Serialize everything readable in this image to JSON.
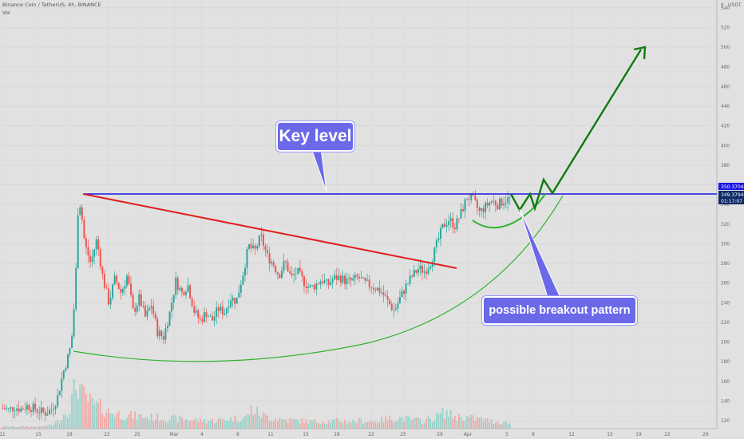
{
  "header": {
    "symbol": "Binance Coin / TetherUS, 4h, BINANCE",
    "indicator": "Vol",
    "currency": "USDT"
  },
  "annotations": {
    "key_level": "Key level",
    "breakout": "possible breakout pattern"
  },
  "colors": {
    "background": "#e1e1e1",
    "up": "#26a69a",
    "down": "#ef5350",
    "key_line": "#1a14e6",
    "trend_line": "#e01e1e",
    "curve": "#2fb32f",
    "arrow": "#0f7a0f",
    "callout": "#6b69e8"
  },
  "chart_data": {
    "type": "candlestick",
    "title": "Binance Coin / TetherUS, 4h, BINANCE",
    "x_tick_labels": [
      "11",
      "15",
      "18",
      "22",
      "25",
      "Mar",
      "4",
      "8",
      "11",
      "15",
      "18",
      "22",
      "25",
      "29",
      "Apr",
      "5",
      "8",
      "12",
      "15",
      "19",
      "22",
      "26"
    ],
    "y_tick_labels": [
      "120",
      "140",
      "160",
      "180",
      "200",
      "220",
      "240",
      "260",
      "280",
      "300",
      "320",
      "340",
      "360",
      "380",
      "400",
      "420",
      "440",
      "460",
      "480",
      "500",
      "520",
      "540"
    ],
    "ylim": [
      112,
      548
    ],
    "key_level_price": "350.3704",
    "last_price": "349.3794",
    "countdown": "01:17:07",
    "price_path": [
      [
        0,
        133
      ],
      [
        2,
        131
      ],
      [
        4,
        134
      ],
      [
        6,
        132
      ],
      [
        8,
        135
      ],
      [
        10,
        133
      ],
      [
        12,
        130
      ],
      [
        14,
        128
      ],
      [
        16,
        131
      ],
      [
        18,
        143
      ],
      [
        20,
        170
      ],
      [
        22,
        190
      ],
      [
        23,
        210
      ],
      [
        24,
        260
      ],
      [
        25,
        350
      ],
      [
        26,
        330
      ],
      [
        27,
        300
      ],
      [
        29,
        280
      ],
      [
        31,
        305
      ],
      [
        33,
        265
      ],
      [
        35,
        240
      ],
      [
        37,
        265
      ],
      [
        39,
        250
      ],
      [
        41,
        268
      ],
      [
        43,
        230
      ],
      [
        45,
        245
      ],
      [
        47,
        225
      ],
      [
        49,
        238
      ],
      [
        51,
        210
      ],
      [
        53,
        205
      ],
      [
        55,
        230
      ],
      [
        57,
        262
      ],
      [
        59,
        250
      ],
      [
        61,
        258
      ],
      [
        63,
        232
      ],
      [
        65,
        222
      ],
      [
        67,
        230
      ],
      [
        69,
        222
      ],
      [
        71,
        234
      ],
      [
        73,
        230
      ],
      [
        75,
        245
      ],
      [
        77,
        242
      ],
      [
        79,
        268
      ],
      [
        81,
        298
      ],
      [
        83,
        292
      ],
      [
        85,
        308
      ],
      [
        87,
        288
      ],
      [
        89,
        280
      ],
      [
        91,
        268
      ],
      [
        93,
        282
      ],
      [
        95,
        265
      ],
      [
        97,
        272
      ],
      [
        99,
        262
      ],
      [
        101,
        255
      ],
      [
        103,
        258
      ],
      [
        105,
        264
      ],
      [
        107,
        258
      ],
      [
        109,
        265
      ],
      [
        111,
        266
      ],
      [
        113,
        262
      ],
      [
        115,
        262
      ],
      [
        117,
        266
      ],
      [
        119,
        260
      ],
      [
        121,
        258
      ],
      [
        123,
        255
      ],
      [
        125,
        250
      ],
      [
        127,
        240
      ],
      [
        129,
        232
      ],
      [
        131,
        246
      ],
      [
        133,
        258
      ],
      [
        135,
        268
      ],
      [
        137,
        275
      ],
      [
        139,
        272
      ],
      [
        141,
        282
      ],
      [
        143,
        300
      ],
      [
        145,
        318
      ],
      [
        147,
        325
      ],
      [
        149,
        318
      ],
      [
        151,
        332
      ],
      [
        153,
        348
      ],
      [
        155,
        344
      ],
      [
        157,
        332
      ],
      [
        159,
        338
      ],
      [
        161,
        344
      ],
      [
        163,
        340
      ],
      [
        165,
        344
      ],
      [
        167,
        346
      ]
    ],
    "volume_path": [
      [
        0,
        6
      ],
      [
        4,
        5
      ],
      [
        8,
        6
      ],
      [
        12,
        5
      ],
      [
        16,
        10
      ],
      [
        18,
        18
      ],
      [
        20,
        40
      ],
      [
        22,
        55
      ],
      [
        24,
        120
      ],
      [
        25,
        130
      ],
      [
        26,
        95
      ],
      [
        28,
        80
      ],
      [
        30,
        65
      ],
      [
        32,
        60
      ],
      [
        34,
        50
      ],
      [
        36,
        45
      ],
      [
        40,
        38
      ],
      [
        44,
        35
      ],
      [
        48,
        32
      ],
      [
        52,
        30
      ],
      [
        56,
        28
      ],
      [
        60,
        26
      ],
      [
        64,
        24
      ],
      [
        68,
        22
      ],
      [
        72,
        24
      ],
      [
        76,
        28
      ],
      [
        80,
        30
      ],
      [
        82,
        55
      ],
      [
        84,
        45
      ],
      [
        86,
        35
      ],
      [
        90,
        28
      ],
      [
        94,
        24
      ],
      [
        98,
        22
      ],
      [
        102,
        20
      ],
      [
        106,
        20
      ],
      [
        110,
        22
      ],
      [
        114,
        20
      ],
      [
        118,
        22
      ],
      [
        122,
        20
      ],
      [
        126,
        26
      ],
      [
        130,
        30
      ],
      [
        134,
        26
      ],
      [
        138,
        22
      ],
      [
        142,
        30
      ],
      [
        144,
        40
      ],
      [
        146,
        45
      ],
      [
        148,
        35
      ],
      [
        152,
        32
      ],
      [
        156,
        28
      ],
      [
        160,
        22
      ],
      [
        164,
        18
      ],
      [
        168,
        14
      ]
    ]
  }
}
